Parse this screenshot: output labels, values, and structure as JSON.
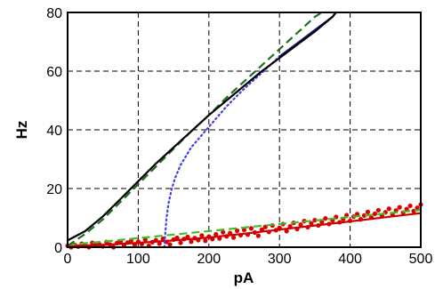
{
  "chart_data": {
    "type": "line",
    "xlabel": "pA",
    "ylabel": "Hz",
    "xlim": [
      0,
      500
    ],
    "ylim": [
      0,
      80
    ],
    "xticks": [
      "0",
      "100",
      "200",
      "300",
      "400",
      "500"
    ],
    "yticks": [
      "0",
      "20",
      "40",
      "60",
      "80"
    ],
    "grid": true,
    "series": [
      {
        "style": "solid",
        "color": "#000000",
        "x": [
          0,
          25,
          50,
          75,
          100,
          125,
          150,
          175,
          200,
          225,
          250,
          275,
          300,
          325,
          350,
          375,
          380
        ],
        "y": [
          2.3,
          5.5,
          10.5,
          16.5,
          22.5,
          28.5,
          34,
          39.5,
          45,
          50,
          55,
          60,
          64.5,
          69,
          73.5,
          78.5,
          80
        ]
      },
      {
        "style": "dashed",
        "color": "#1f6e1f",
        "x": [
          0,
          25,
          50,
          75,
          100,
          125,
          150,
          175,
          200,
          225,
          250,
          275,
          300,
          325,
          350,
          360
        ],
        "y": [
          0.5,
          4.5,
          9.5,
          15.5,
          21.5,
          27.5,
          33.5,
          39.5,
          45,
          51,
          56.5,
          62,
          67.5,
          73,
          78.5,
          80
        ]
      },
      {
        "style": "dotted",
        "color": "#4040e0",
        "x": [
          137,
          138,
          140,
          143,
          147,
          152,
          160,
          175,
          200,
          225,
          250,
          275,
          300
        ],
        "y": [
          0,
          4,
          10,
          15,
          19.5,
          23.5,
          28,
          34,
          41,
          48,
          54,
          59.5,
          65
        ]
      },
      {
        "style": "solid",
        "color": "#1a1a8c",
        "x": [
          300,
          325,
          350,
          375,
          380
        ],
        "y": [
          65,
          69.5,
          74,
          78.5,
          80
        ]
      },
      {
        "style": "solid",
        "color": "#cc0000",
        "x": [
          0,
          50,
          100,
          150,
          200,
          250,
          300,
          350,
          400,
          450,
          500
        ],
        "y": [
          0.3,
          0.8,
          1.5,
          2.3,
          3.3,
          4.6,
          6.0,
          7.4,
          8.8,
          10.2,
          11.6
        ]
      },
      {
        "style": "dashed",
        "color": "#44bb22",
        "x": [
          0,
          50,
          100,
          150,
          200,
          250,
          300,
          350,
          400,
          450,
          500
        ],
        "y": [
          0.8,
          1.9,
          3.1,
          4.3,
          5.5,
          6.7,
          7.9,
          9.1,
          10.3,
          11.5,
          12.7
        ]
      },
      {
        "style": "points",
        "color": "#dd0000",
        "x": [
          0,
          5,
          10,
          15,
          20,
          25,
          30,
          35,
          40,
          45,
          50,
          55,
          60,
          65,
          70,
          75,
          80,
          85,
          90,
          95,
          100,
          105,
          110,
          115,
          120,
          125,
          130,
          135,
          140,
          145,
          150,
          155,
          160,
          165,
          170,
          175,
          180,
          185,
          190,
          195,
          200,
          205,
          210,
          215,
          220,
          225,
          230,
          235,
          240,
          245,
          250,
          255,
          260,
          265,
          270,
          275,
          280,
          285,
          290,
          295,
          300,
          305,
          310,
          315,
          320,
          325,
          330,
          335,
          340,
          345,
          350,
          355,
          360,
          365,
          370,
          375,
          380,
          385,
          390,
          395,
          400,
          405,
          410,
          415,
          420,
          425,
          430,
          435,
          440,
          445,
          450,
          455,
          460,
          465,
          470,
          475,
          480,
          485,
          490,
          495,
          500
        ],
        "y": [
          0.5,
          0,
          0.8,
          0.2,
          1.2,
          0.4,
          0,
          1.5,
          0.6,
          1.0,
          0.3,
          1.8,
          0.9,
          0,
          1.4,
          2.0,
          0.7,
          1.6,
          2.3,
          0.8,
          1.9,
          1.1,
          2.6,
          0.5,
          1.7,
          2.4,
          1.2,
          2.9,
          1.8,
          0.9,
          2.6,
          3.2,
          1.5,
          2.8,
          3.5,
          1.9,
          3.1,
          2.4,
          4.0,
          2.2,
          3.6,
          2.8,
          4.4,
          3.0,
          5.1,
          3.7,
          4.8,
          3.3,
          5.6,
          4.1,
          5.9,
          4.3,
          6.4,
          5.0,
          3.9,
          6.0,
          6.9,
          5.2,
          7.4,
          5.8,
          6.6,
          7.9,
          5.5,
          7.1,
          8.3,
          6.2,
          7.7,
          8.9,
          6.8,
          8.1,
          9.2,
          7.4,
          8.6,
          9.8,
          7.9,
          9.1,
          10.3,
          8.5,
          9.6,
          10.9,
          9.0,
          10.4,
          11.3,
          9.5,
          10.8,
          12.0,
          10.1,
          11.4,
          12.6,
          10.7,
          11.9,
          13.1,
          11.2,
          12.5,
          13.6,
          11.8,
          13.0,
          14.1,
          12.3,
          13.4,
          14.5
        ]
      }
    ]
  }
}
